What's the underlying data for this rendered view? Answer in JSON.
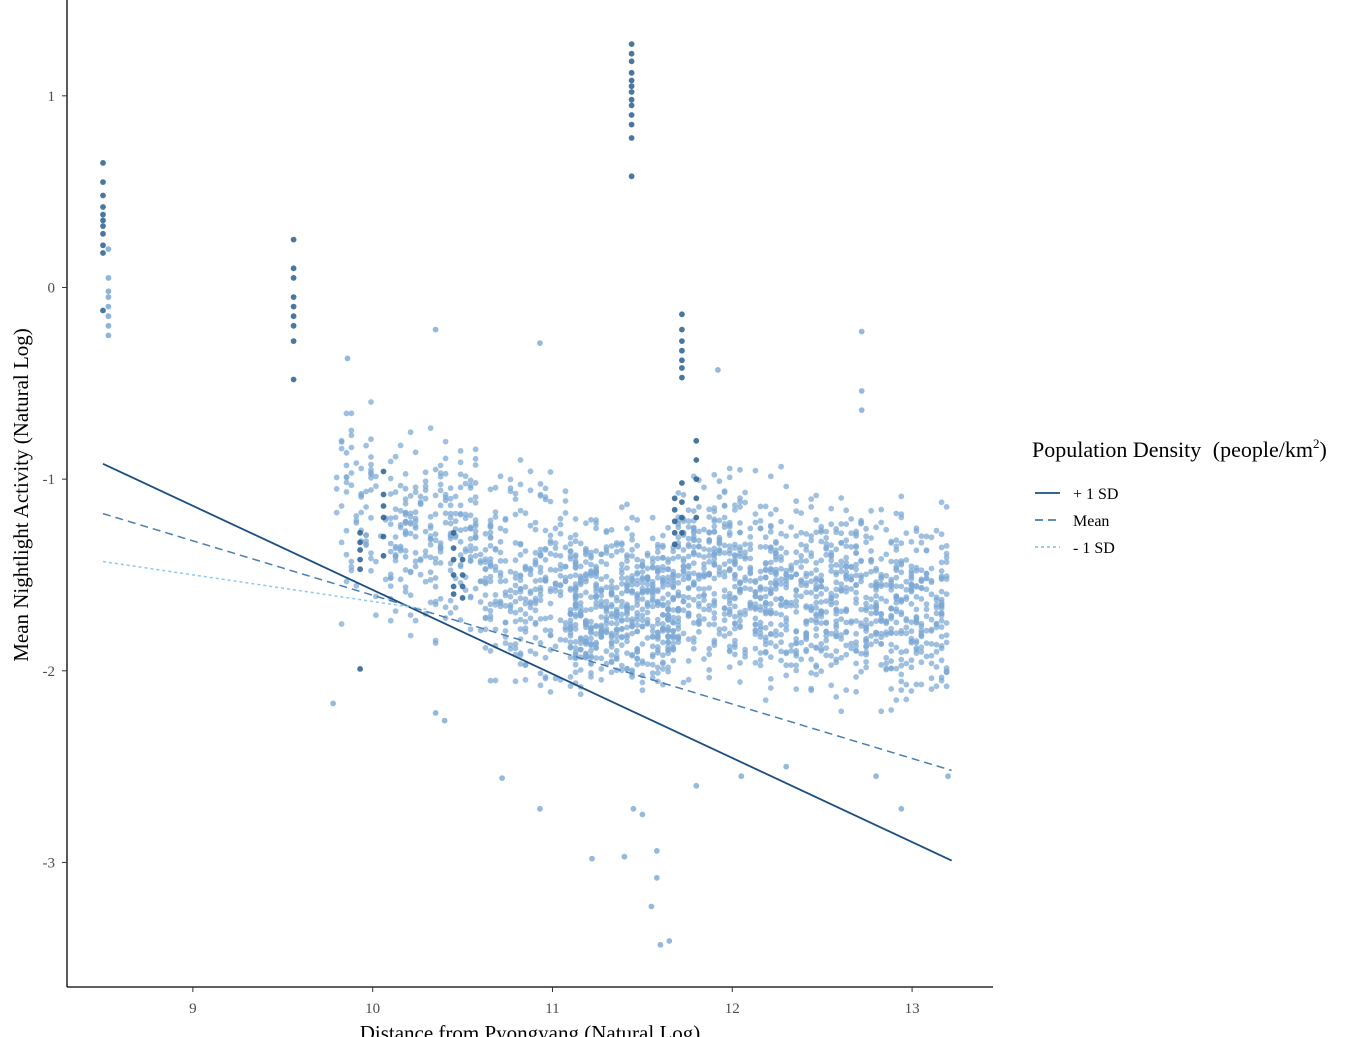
{
  "chart_data": {
    "type": "scatter",
    "title": "",
    "xlabel": "Distance from Pyongyang (Natural Log)",
    "ylabel": "Mean Nightlight Activity (Natural Log)",
    "xlim": [
      8.3,
      13.45
    ],
    "ylim": [
      -3.65,
      1.5
    ],
    "x_ticks": [
      9,
      10,
      11,
      12,
      13
    ],
    "y_ticks": [
      -3,
      -2,
      -1,
      0,
      1
    ],
    "grid": false,
    "legend": {
      "title": "Population Density",
      "title_unit_prefix": "(people/km",
      "title_unit_sup": "2",
      "title_unit_suffix": ")",
      "placement": "right",
      "entries": [
        {
          "label": "+ 1 SD",
          "color": "#1c4e80",
          "dash": "solid"
        },
        {
          "label": "Mean",
          "color": "#4a7fb0",
          "dash": "dashed"
        },
        {
          "label": "- 1 SD",
          "color": "#8ec8ec",
          "dash": "dotted"
        }
      ]
    },
    "colors": {
      "point_light": "#7ba7d4",
      "point_dark": "#2a5f8f",
      "axis": "#000000"
    },
    "series": [
      {
        "name": "+ 1 SD",
        "x": [
          8.5,
          13.22
        ],
        "y": [
          -0.92,
          -2.99
        ]
      },
      {
        "name": "Mean",
        "x": [
          8.5,
          13.22
        ],
        "y": [
          -1.18,
          -2.52
        ]
      },
      {
        "name": "- 1 SD",
        "x": [
          8.5,
          10.3
        ],
        "y": [
          -1.43,
          -1.68
        ]
      }
    ],
    "point_columns": [
      {
        "x": 8.5,
        "y": [
          0.65,
          0.55,
          0.48,
          0.42,
          0.38,
          0.35,
          0.32,
          0.28,
          0.22,
          0.18,
          -0.12
        ],
        "dark": true
      },
      {
        "x": 8.53,
        "y": [
          0.2,
          0.05,
          -0.02,
          -0.05,
          -0.1,
          -0.15,
          -0.2,
          -0.25
        ],
        "dark": false
      },
      {
        "x": 9.56,
        "y": [
          0.25,
          0.1,
          0.05,
          -0.05,
          -0.1,
          -0.15,
          -0.2,
          -0.28,
          -0.48
        ],
        "dark": true
      },
      {
        "x": 11.44,
        "y": [
          1.27,
          1.22,
          1.18,
          1.12,
          1.08,
          1.05,
          1.02,
          0.98,
          0.95,
          0.9,
          0.85,
          0.78,
          0.58
        ],
        "dark": true
      },
      {
        "x": 11.72,
        "y": [
          -0.14,
          -0.22,
          -0.28,
          -0.33,
          -0.38,
          -0.42,
          -0.47,
          -1.02,
          -1.12,
          -1.2,
          -1.28
        ],
        "dark": true
      },
      {
        "x": 11.8,
        "y": [
          -0.8,
          -0.9,
          -1.0,
          -1.1,
          -1.2
        ],
        "dark": true
      },
      {
        "x": 9.93,
        "y": [
          -1.28,
          -1.33,
          -1.37,
          -1.42,
          -1.47,
          -1.99
        ],
        "dark": true
      },
      {
        "x": 10.06,
        "y": [
          -0.96,
          -1.08,
          -1.14,
          -1.2,
          -1.3,
          -1.4
        ],
        "dark": true
      },
      {
        "x": 10.45,
        "y": [
          -1.28,
          -1.36,
          -1.42,
          -1.5,
          -1.56,
          -1.6
        ],
        "dark": true
      },
      {
        "x": 10.5,
        "y": [
          -1.42,
          -1.5,
          -1.56,
          -1.62
        ],
        "dark": true
      },
      {
        "x": 11.68,
        "y": [
          -1.1,
          -1.16,
          -1.22,
          -1.28,
          -1.34
        ],
        "dark": true
      }
    ],
    "scatter_bands": [
      {
        "x_range": [
          9.8,
          10.1
        ],
        "y_range": [
          -1.95,
          -0.4
        ],
        "n": 70
      },
      {
        "x_range": [
          10.1,
          10.6
        ],
        "y_range": [
          -1.95,
          -0.6
        ],
        "n": 220
      },
      {
        "x_range": [
          10.6,
          11.1
        ],
        "y_range": [
          -2.25,
          -0.8
        ],
        "n": 260
      },
      {
        "x_range": [
          11.1,
          11.7
        ],
        "y_range": [
          -2.3,
          -1.05
        ],
        "n": 560
      },
      {
        "x_range": [
          11.7,
          12.3
        ],
        "y_range": [
          -2.25,
          -0.8
        ],
        "n": 460
      },
      {
        "x_range": [
          12.3,
          12.8
        ],
        "y_range": [
          -2.3,
          -0.9
        ],
        "n": 340
      },
      {
        "x_range": [
          12.8,
          13.22
        ],
        "y_range": [
          -2.35,
          -1.0
        ],
        "n": 280
      }
    ],
    "outliers": [
      {
        "x": 10.35,
        "y": -0.22
      },
      {
        "x": 10.93,
        "y": -0.29
      },
      {
        "x": 12.72,
        "y": -0.23
      },
      {
        "x": 11.92,
        "y": -0.43
      },
      {
        "x": 9.86,
        "y": -0.37
      },
      {
        "x": 12.72,
        "y": -0.54
      },
      {
        "x": 12.72,
        "y": -0.64
      },
      {
        "x": 11.6,
        "y": -3.43
      },
      {
        "x": 11.65,
        "y": -3.41
      },
      {
        "x": 11.55,
        "y": -3.23
      },
      {
        "x": 11.58,
        "y": -3.08
      },
      {
        "x": 11.4,
        "y": -2.97
      },
      {
        "x": 11.22,
        "y": -2.98
      },
      {
        "x": 11.58,
        "y": -2.94
      },
      {
        "x": 11.45,
        "y": -2.72
      },
      {
        "x": 11.5,
        "y": -2.75
      },
      {
        "x": 10.93,
        "y": -2.72
      },
      {
        "x": 12.94,
        "y": -2.72
      },
      {
        "x": 10.72,
        "y": -2.56
      },
      {
        "x": 9.78,
        "y": -2.17
      },
      {
        "x": 10.35,
        "y": -2.22
      },
      {
        "x": 10.4,
        "y": -2.26
      },
      {
        "x": 11.8,
        "y": -2.6
      },
      {
        "x": 12.05,
        "y": -2.55
      },
      {
        "x": 12.3,
        "y": -2.5
      },
      {
        "x": 12.8,
        "y": -2.55
      },
      {
        "x": 13.2,
        "y": -2.55
      }
    ]
  }
}
